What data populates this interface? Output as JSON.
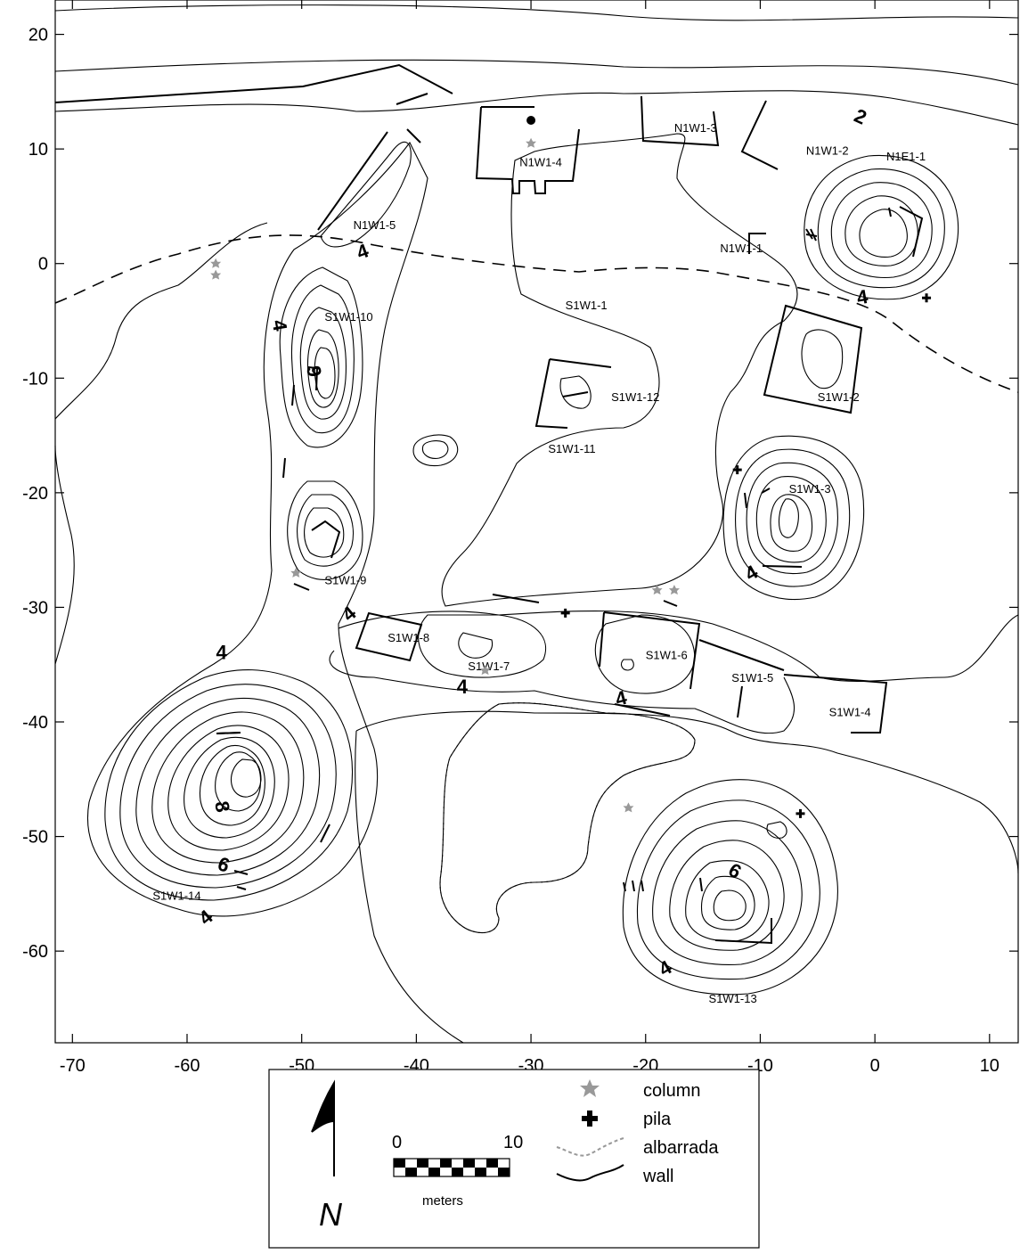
{
  "map": {
    "x_ticks": [
      "-70",
      "-60",
      "-50",
      "-40",
      "-30",
      "-20",
      "-10",
      "0",
      "10"
    ],
    "y_ticks": [
      "20",
      "10",
      "0",
      "-10",
      "-20",
      "-30",
      "-40",
      "-50",
      "-60"
    ],
    "x_range": [
      -71.5,
      12.5
    ],
    "y_range": [
      -68,
      23
    ],
    "site_labels": [
      {
        "text": "N1W1-4",
        "x": -31,
        "y": 8.5
      },
      {
        "text": "N1W1-3",
        "x": -17.5,
        "y": 11.5
      },
      {
        "text": "N1W1-2",
        "x": -6,
        "y": 9.5
      },
      {
        "text": "N1E1-1",
        "x": 1,
        "y": 9
      },
      {
        "text": "N1W1-5",
        "x": -45.5,
        "y": 3
      },
      {
        "text": "N1W1-1",
        "x": -13.5,
        "y": 1
      },
      {
        "text": "S1W1-1",
        "x": -27,
        "y": -4
      },
      {
        "text": "S1W1-10",
        "x": -48,
        "y": -5
      },
      {
        "text": "S1W1-12",
        "x": -23,
        "y": -12
      },
      {
        "text": "S1W1-11",
        "x": -28.5,
        "y": -16.5
      },
      {
        "text": "S1W1-2",
        "x": -5,
        "y": -12
      },
      {
        "text": "S1W1-3",
        "x": -7.5,
        "y": -20
      },
      {
        "text": "S1W1-9",
        "x": -48,
        "y": -28
      },
      {
        "text": "S1W1-8",
        "x": -42.5,
        "y": -33
      },
      {
        "text": "S1W1-7",
        "x": -35.5,
        "y": -35.5
      },
      {
        "text": "S1W1-6",
        "x": -20,
        "y": -34.5
      },
      {
        "text": "S1W1-5",
        "x": -12.5,
        "y": -36.5
      },
      {
        "text": "S1W1-4",
        "x": -4,
        "y": -39.5
      },
      {
        "text": "S1W1-14",
        "x": -63,
        "y": -55.5
      },
      {
        "text": "S1W1-13",
        "x": -14.5,
        "y": -64.5
      }
    ],
    "contour_labels": [
      {
        "text": "2",
        "x": -1.5,
        "y": 12.3,
        "rot": 25
      },
      {
        "text": "4",
        "x": -44.5,
        "y": 0.5,
        "rot": -20
      },
      {
        "text": "4",
        "x": -52.5,
        "y": -5.5,
        "rot": 80
      },
      {
        "text": "9",
        "x": -49.5,
        "y": -9.5,
        "rot": 80
      },
      {
        "text": "4",
        "x": -1,
        "y": -3.5,
        "rot": -10
      },
      {
        "text": "4",
        "x": -10.5,
        "y": -27.5,
        "rot": -30
      },
      {
        "text": "4",
        "x": -45.5,
        "y": -31,
        "rot": -40
      },
      {
        "text": "4",
        "x": -57,
        "y": -34.5,
        "rot": 0
      },
      {
        "text": "4",
        "x": -36,
        "y": -37.5,
        "rot": 0
      },
      {
        "text": "4",
        "x": -22,
        "y": -38.5,
        "rot": -15
      },
      {
        "text": "8",
        "x": -57.5,
        "y": -47.5,
        "rot": 80
      },
      {
        "text": "6",
        "x": -57,
        "y": -53,
        "rot": 20
      },
      {
        "text": "4",
        "x": -58,
        "y": -57.5,
        "rot": -40
      },
      {
        "text": "6",
        "x": -12.5,
        "y": -53.5,
        "rot": 30
      },
      {
        "text": "4",
        "x": -18,
        "y": -62,
        "rot": -30
      }
    ],
    "columns": [
      {
        "x": -30,
        "y": 10.5
      },
      {
        "x": -57.5,
        "y": 0
      },
      {
        "x": -57.5,
        "y": -1
      },
      {
        "x": -50.5,
        "y": -27
      },
      {
        "x": -34,
        "y": -35.5
      },
      {
        "x": -19,
        "y": -28.5
      },
      {
        "x": -17.5,
        "y": -28.5
      },
      {
        "x": -21.5,
        "y": -47.5
      }
    ],
    "pilas": [
      {
        "x": 4.5,
        "y": -3
      },
      {
        "x": -12,
        "y": -18
      },
      {
        "x": -27,
        "y": -30.5
      },
      {
        "x": -6.5,
        "y": -48
      }
    ],
    "markers": [
      {
        "type": "dot",
        "x": -30,
        "y": 12.5
      }
    ]
  },
  "legend": {
    "scale_start": "0",
    "scale_end": "10",
    "scale_unit": "meters",
    "north": "N",
    "items": [
      {
        "label": "column",
        "symbol": "column-icon"
      },
      {
        "label": "pila",
        "symbol": "pila-icon"
      },
      {
        "label": "albarrada",
        "symbol": "albarrada-icon"
      },
      {
        "label": "wall",
        "symbol": "wall-icon"
      }
    ]
  },
  "colors": {
    "line": "#000000",
    "column": "#999999",
    "background": "#ffffff"
  }
}
